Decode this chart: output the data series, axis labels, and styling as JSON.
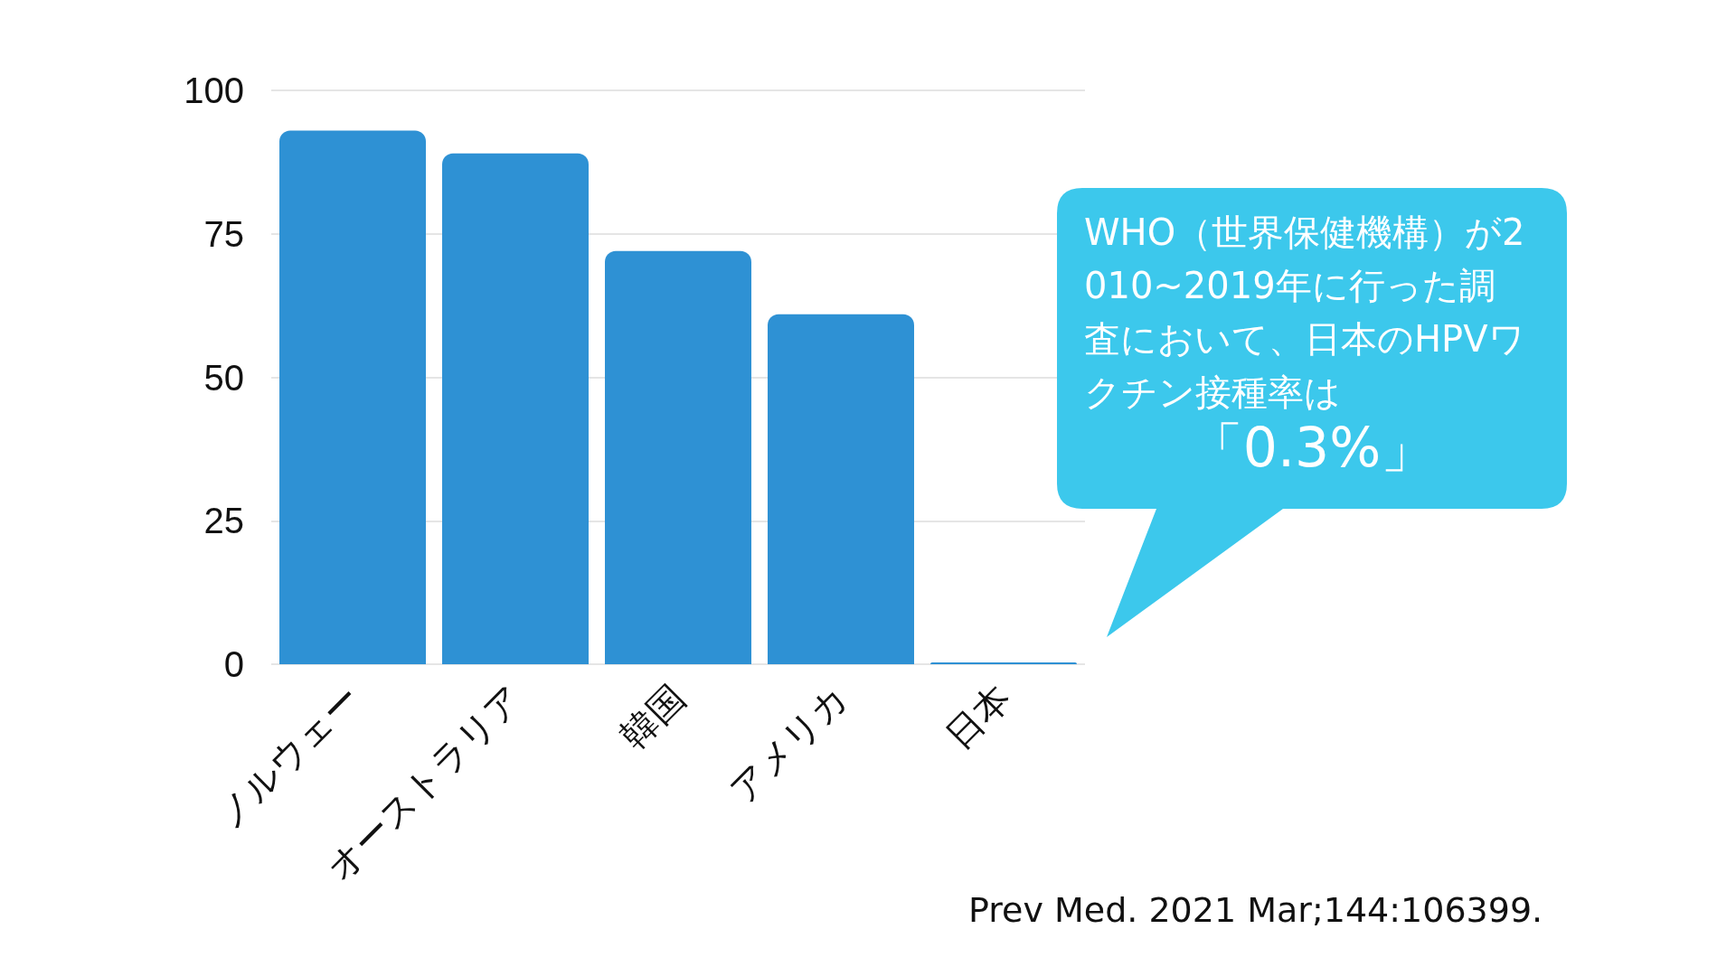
{
  "chart_data": {
    "type": "bar",
    "categories": [
      "ノルウェー",
      "オーストラリア",
      "韓国",
      "アメリカ",
      "日本"
    ],
    "values": [
      93,
      89,
      72,
      61,
      0.3
    ],
    "color": "#2e91d4",
    "ylim": [
      0,
      100
    ],
    "yticks": [
      0,
      25,
      50,
      75,
      100
    ],
    "grid": "y",
    "annotations": [
      "WHO（世界保健機構）が2010~2019年に行った調査において、日本のHPVワクチン接種率は",
      "「0.3%」",
      "Prev Med. 2021 Mar;144:106399."
    ]
  }
}
